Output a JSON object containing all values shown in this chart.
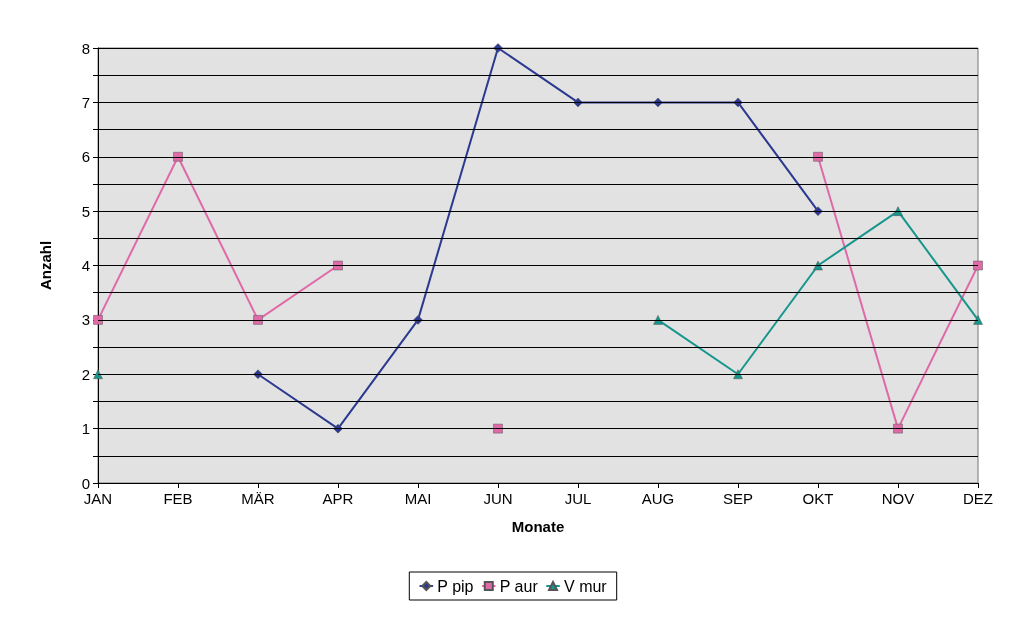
{
  "chart_data": {
    "type": "line",
    "xlabel": "Monate",
    "ylabel": "Anzahl",
    "categories": [
      "JAN",
      "FEB",
      "MÄR",
      "APR",
      "MAI",
      "JUN",
      "JUL",
      "AUG",
      "SEP",
      "OKT",
      "NOV",
      "DEZ"
    ],
    "series": [
      {
        "name": "P pip",
        "color": "#2b3990",
        "marker": "diamond",
        "values": [
          null,
          null,
          2,
          1,
          3,
          8,
          7,
          7,
          7,
          5,
          null,
          null
        ]
      },
      {
        "name": "P aur",
        "color": "#e06aa8",
        "marker": "square",
        "values": [
          3,
          6,
          3,
          4,
          null,
          1,
          null,
          null,
          null,
          6,
          1,
          4
        ]
      },
      {
        "name": "V mur",
        "color": "#16968c",
        "marker": "triangle",
        "values": [
          2,
          null,
          null,
          null,
          null,
          null,
          null,
          3,
          2,
          4,
          5,
          3
        ]
      }
    ],
    "ylim": [
      0,
      8
    ],
    "yticks": [
      0,
      {
        "value": 0.5,
        "label": null
      },
      1,
      {
        "value": 1.5,
        "label": null
      },
      2,
      {
        "value": 2.5,
        "label": null
      },
      3,
      {
        "value": 3.5,
        "label": null
      },
      4,
      {
        "value": 4.5,
        "label": null
      },
      5,
      {
        "value": 5.5,
        "label": null
      },
      6,
      {
        "value": 6.5,
        "label": null
      },
      7,
      {
        "value": 7.5,
        "label": null
      },
      8
    ],
    "grid": "y",
    "legend": "bottom"
  }
}
